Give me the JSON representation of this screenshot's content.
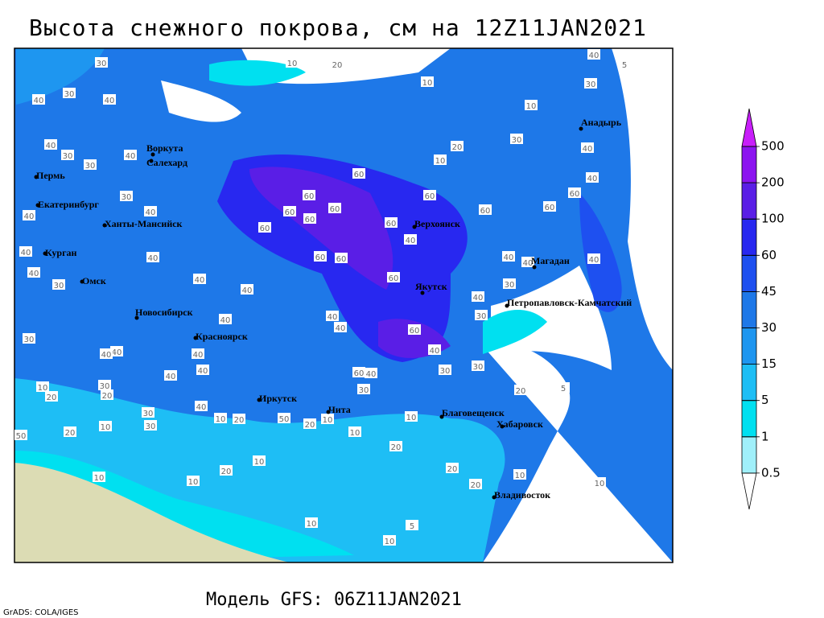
{
  "title": "Высота снежного покрова, см на 12Z11JAN2021",
  "footer": "Модель GFS: 06Z11JAN2021",
  "credit": "GrADS: COLA/IGES",
  "colorbar": {
    "levels": [
      0.5,
      1,
      5,
      15,
      30,
      45,
      60,
      100,
      200,
      500
    ],
    "colors": [
      "#ffffff",
      "#a0f0fa",
      "#00e0f0",
      "#1ebef5",
      "#1e96f0",
      "#1e78e8",
      "#1e50f0",
      "#2828f0",
      "#5a1ee6",
      "#8c14f0",
      "#c81efa"
    ]
  },
  "cities": [
    "Воркута",
    "Салехард",
    "Пермь",
    "Екатеринбург",
    "Ханты-Мансийск",
    "Курган",
    "Омск",
    "Новосибирск",
    "Красноярск",
    "Иркутск",
    "Чита",
    "Благовещенск",
    "Хабаровск",
    "Владивосток",
    "Верхоянск",
    "Якутск",
    "Магадан",
    "Петропавловск-Камчатский",
    "Анадырь"
  ],
  "contour_labels": [
    30,
    40,
    30,
    40,
    40,
    30,
    30,
    40,
    30,
    40,
    40,
    40,
    40,
    30,
    40,
    40,
    40,
    40,
    60,
    60,
    60,
    60,
    60,
    60,
    60,
    60,
    40,
    60,
    60,
    60,
    60,
    60,
    40,
    40,
    40,
    30,
    40,
    30,
    40,
    60,
    40,
    40,
    40,
    40,
    40,
    40,
    40,
    60,
    40,
    30,
    30,
    30,
    10,
    20,
    30,
    20,
    20,
    10,
    30,
    30,
    40,
    10,
    20,
    50,
    20,
    10,
    10,
    10,
    20,
    20,
    10,
    20,
    10,
    10,
    20,
    10,
    10,
    5,
    10,
    50,
    30,
    10,
    20,
    10,
    20,
    10,
    30,
    40,
    30,
    40,
    5,
    10,
    40,
    60,
    5,
    20,
    10
  ]
}
